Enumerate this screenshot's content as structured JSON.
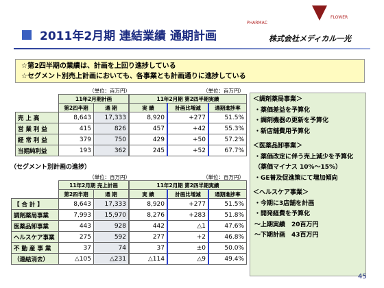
{
  "header": {
    "title": "2011年2月期 連結業績 通期計画",
    "logo_top": "PHARMAC",
    "logo_side": "FLOWER",
    "company": "株式会社メディカル一光"
  },
  "notes": [
    "☆第2四半期の業績は、計画を上回り進捗している",
    "☆セグメント別売上計画においても、各事業とも計画通りに進捗している"
  ],
  "top_plan": {
    "unit": "（単位：百万円）",
    "header": "11年2月期計画",
    "columns": [
      "第2四半期",
      "通 期"
    ],
    "rows": [
      [
        "売 上 高",
        "8,643",
        "17,333"
      ],
      [
        "営 業 利 益",
        "415",
        "826"
      ],
      [
        "経 常 利 益",
        "379",
        "750"
      ],
      [
        "当期純利益",
        "193",
        "362"
      ]
    ]
  },
  "top_actual": {
    "unit": "（単位：百万円）",
    "header": "11年2月期 第2四半期実績",
    "columns": [
      "実 績",
      "計画比増減",
      "通期進捗率"
    ],
    "rows": [
      [
        "8,920",
        "+277",
        "51.5%"
      ],
      [
        "457",
        "+42",
        "55.3%"
      ],
      [
        "429",
        "+50",
        "57.2%"
      ],
      [
        "245",
        "+52",
        "67.7%"
      ]
    ]
  },
  "segment_title": "（セグメント別計画の進捗）",
  "seg_plan": {
    "unit": "（単位：百万円）",
    "header": "11年2月期 売上計画",
    "columns": [
      "第2四半期",
      "通 期"
    ],
    "rows": [
      [
        "【 合 計 】",
        "8,643",
        "17,333"
      ],
      [
        "調剤薬局事業",
        "7,993",
        "15,970"
      ],
      [
        "医薬品卸事業",
        "443",
        "928"
      ],
      [
        "ヘルスケア事業",
        "275",
        "592"
      ],
      [
        "不 動 産 事 業",
        "37",
        "74"
      ],
      [
        "（連結消去）",
        "△105",
        "△231"
      ]
    ]
  },
  "seg_actual": {
    "unit": "（単位：百万円）",
    "header": "11年2月期 第2四半期実績",
    "columns": [
      "実 績",
      "計画比増減",
      "通期進捗率"
    ],
    "rows": [
      [
        "8,920",
        "+277",
        "51.5%"
      ],
      [
        "8,276",
        "+283",
        "51.8%"
      ],
      [
        "442",
        "△1",
        "47.6%"
      ],
      [
        "277",
        "+2",
        "46.8%"
      ],
      [
        "37",
        "±0",
        "50.0%"
      ],
      [
        "△114",
        "△9",
        "49.4%"
      ]
    ]
  },
  "panel": [
    {
      "heading": "＜調剤薬局事業＞",
      "items": [
        "・薬価差益を予算化",
        "・調剤機器の更新を予算化",
        "・新店舗費用予算化"
      ]
    },
    {
      "heading": "＜医薬品卸事業＞",
      "items": [
        "・薬価改定に伴う売上減少を予算化",
        "（薬価マイナス 10%～15%）",
        "・GE普及促進策にて増加傾向"
      ]
    },
    {
      "heading": "＜ヘルスケア事業＞",
      "items": [
        "・今期に3店舗を計画",
        "・開発経費を予算化",
        "～上期実績　20百万円",
        "～下期計画　43百万円"
      ]
    }
  ],
  "page_number": "45"
}
